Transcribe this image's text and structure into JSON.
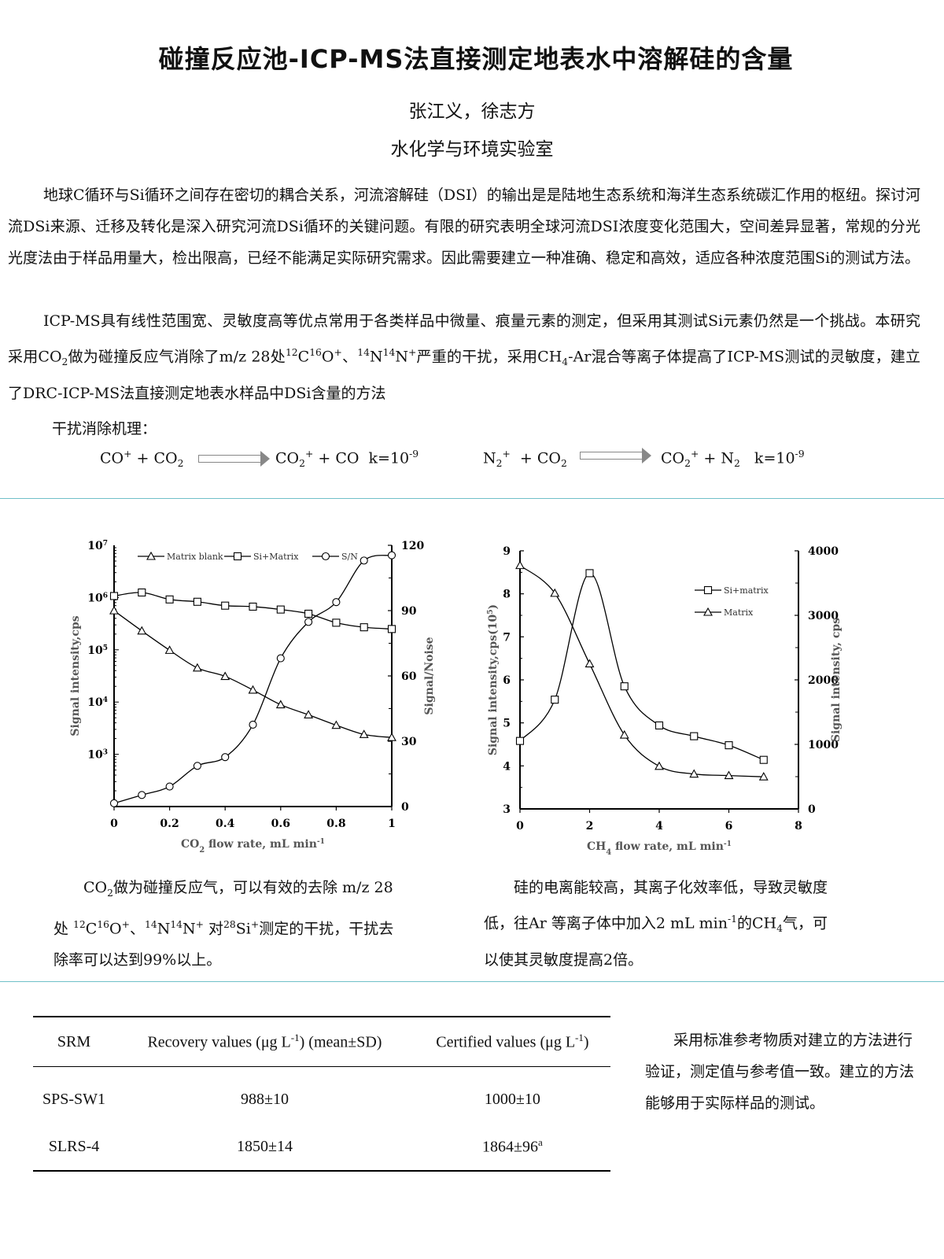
{
  "title": "碰撞反应池-ICP-MS法直接测定地表水中溶解硅的含量",
  "authors": "张江义，徐志方",
  "lab": "水化学与环境实验室",
  "intro": {
    "p1": [
      [
        "地球C循环与Si循环之间存在密切的耦合关系，河流溶解硅（DSI）的输出是是陆地生态系统和海洋生态系统碳汇作用的枢纽。探讨河流DSi来源、迁移及转化是深入研究河流DSi循环的关键问题。有限的研究表明全球河流DSI浓度变化范围大，空间差异显著，常规的分光光度法由于样品用量大，检出限高，已经不能满足实际研究需求。因此需要建立一种准确、稳定和高效，适应各种浓度范围Si的测试方法。",
        ""
      ]
    ],
    "p2": [
      [
        "ICP-MS具有线性范围宽、灵敏度高等优点常用于各类样品中微量、痕量元素的测定，但采用其测试Si元素仍然是一个挑战。本研究采用CO",
        ""
      ],
      [
        "2",
        "sub"
      ],
      [
        "做为碰撞反应气消除了m/z 28处",
        ""
      ],
      [
        "12",
        "sup"
      ],
      [
        "C",
        ""
      ],
      [
        "16",
        "sup"
      ],
      [
        "O",
        ""
      ],
      [
        "+",
        "sup"
      ],
      [
        "、",
        ""
      ],
      [
        "14",
        "sup"
      ],
      [
        "N",
        ""
      ],
      [
        "14",
        "sup"
      ],
      [
        "N",
        ""
      ],
      [
        "+",
        "sup"
      ],
      [
        "严重的干扰，采用CH",
        ""
      ],
      [
        "4",
        "sub"
      ],
      [
        "-Ar混合等离子体提高了ICP-MS测试的灵敏度，建立了DRC-ICP-MS法直接测定地表水样品中DSi含量的方法",
        ""
      ]
    ]
  },
  "mechanism": {
    "label": "干扰消除机理：",
    "eq1_left": [
      [
        "CO",
        ""
      ],
      [
        "+",
        "sup"
      ],
      [
        " + CO",
        ""
      ],
      [
        "2",
        "sub"
      ]
    ],
    "eq1_right": [
      [
        "CO",
        ""
      ],
      [
        "2",
        "sub"
      ],
      [
        "+",
        "sup"
      ],
      [
        " + CO  k=10",
        ""
      ],
      [
        "-9",
        "sup"
      ]
    ],
    "eq2_left": [
      [
        "N",
        ""
      ],
      [
        "2",
        "sub"
      ],
      [
        "+",
        "sup"
      ],
      [
        "  + CO",
        ""
      ],
      [
        "2",
        "sub"
      ]
    ],
    "eq2_right": [
      [
        "CO",
        ""
      ],
      [
        "2",
        "sub"
      ],
      [
        "+",
        "sup"
      ],
      [
        " + N",
        ""
      ],
      [
        "2",
        "sub"
      ],
      [
        "   k=10",
        ""
      ],
      [
        "-9",
        "sup"
      ]
    ]
  },
  "chart_data": [
    {
      "type": "line",
      "x": [
        0,
        0.1,
        0.2,
        0.3,
        0.4,
        0.5,
        0.6,
        0.7,
        0.8,
        0.9,
        1.0
      ],
      "xlabel": [
        [
          "CO",
          ""
        ],
        [
          "2",
          "sub"
        ],
        [
          " flow rate, mL min",
          ""
        ],
        [
          "-1",
          "sup"
        ]
      ],
      "xticks": [
        "0",
        "0.2",
        "0.4",
        "0.6",
        "0.8",
        "1"
      ],
      "xlim": [
        0,
        1
      ],
      "ylabel": "Signal intensity,cps",
      "yscale": "log",
      "ylim": [
        100,
        10000000
      ],
      "yticks": [
        [
          "10",
          "3"
        ],
        [
          "10",
          "4"
        ],
        [
          "10",
          "5"
        ],
        [
          "10",
          "6"
        ],
        [
          "10",
          "7"
        ]
      ],
      "y2label": "Signal/Noise",
      "y2lim": [
        0,
        120
      ],
      "y2ticks": [
        "0",
        "30",
        "60",
        "90",
        "120"
      ],
      "legend_position": "top",
      "series": [
        {
          "name": "Matrix blank",
          "marker": "triangle",
          "axis": "left",
          "values": [
            560000,
            230000,
            98000,
            45000,
            31000,
            17000,
            8900,
            5700,
            3600,
            2400,
            2100
          ]
        },
        {
          "name": "Si+Matrix",
          "marker": "square",
          "axis": "left",
          "values": [
            1070000,
            1250000,
            920000,
            830000,
            700000,
            670000,
            590000,
            490000,
            330000,
            270000,
            250000
          ]
        },
        {
          "name": "S/N",
          "marker": "circle",
          "axis": "right",
          "values": [
            1.5,
            5.3,
            9.2,
            18.7,
            22.7,
            37.6,
            68.1,
            84.8,
            93.9,
            113,
            115.4
          ]
        }
      ]
    },
    {
      "type": "line",
      "x": [
        0,
        1,
        2,
        3,
        4,
        5,
        6,
        7
      ],
      "xlabel": [
        [
          "CH",
          ""
        ],
        [
          "4",
          "sub"
        ],
        [
          " flow rate, mL min",
          ""
        ],
        [
          "-1",
          "sup"
        ]
      ],
      "xticks": [
        "0",
        "2",
        "4",
        "6",
        "8"
      ],
      "xlim": [
        0,
        8
      ],
      "ylabel": [
        [
          "Signal intensity,cps(10",
          ""
        ],
        [
          "5",
          "sup"
        ],
        [
          ")",
          ""
        ]
      ],
      "ylim": [
        3,
        9
      ],
      "yticks": [
        "3",
        "4",
        "5",
        "6",
        "7",
        "8",
        "9"
      ],
      "y2label": "Signal intensity, cps",
      "y2lim": [
        0,
        4000
      ],
      "y2ticks": [
        "0",
        "1000",
        "2000",
        "3000",
        "4000"
      ],
      "legend_position": "top-right",
      "series": [
        {
          "name": "Si+matrix",
          "marker": "square",
          "axis": "left",
          "values": [
            4.58,
            5.54,
            8.48,
            5.85,
            4.94,
            4.69,
            4.48,
            4.14
          ]
        },
        {
          "name": "Matrix",
          "marker": "triangle",
          "axis": "right",
          "values": [
            3773,
            3343,
            2249,
            1146,
            661,
            541,
            517,
            498
          ]
        }
      ]
    }
  ],
  "captions": {
    "left": [
      [
        "CO",
        ""
      ],
      [
        "2",
        "sub"
      ],
      [
        "做为碰撞反应气，可以有效的去除 m/z 28处 ",
        ""
      ],
      [
        "12",
        "sup"
      ],
      [
        "C",
        ""
      ],
      [
        "16",
        "sup"
      ],
      [
        "O",
        ""
      ],
      [
        "+",
        "sup"
      ],
      [
        "、",
        ""
      ],
      [
        "14",
        "sup"
      ],
      [
        "N",
        ""
      ],
      [
        "14",
        "sup"
      ],
      [
        "N",
        ""
      ],
      [
        "+",
        "sup"
      ],
      [
        " 对",
        ""
      ],
      [
        "28",
        "sup"
      ],
      [
        "Si",
        ""
      ],
      [
        "+",
        "sup"
      ],
      [
        "测定的干扰，干扰去除率可以达到99%以上。",
        ""
      ]
    ],
    "right": [
      [
        "硅的电离能较高，其离子化效率低，导致灵敏度低，往Ar 等离子体中加入2 mL min",
        ""
      ],
      [
        "-1",
        "sup"
      ],
      [
        "的CH",
        ""
      ],
      [
        "4",
        "sub"
      ],
      [
        "气，可以使其灵敏度提高2倍。",
        ""
      ]
    ]
  },
  "table": {
    "headers": [
      "SRM",
      "Recovery values (μg L-1) (mean±SD)",
      "Certified values (μg L-1)"
    ],
    "header_rich": [
      [
        [
          "SRM",
          ""
        ]
      ],
      [
        [
          "Recovery values (μg L",
          ""
        ],
        [
          "-1",
          "sup"
        ],
        [
          ") (mean±SD)",
          ""
        ]
      ],
      [
        [
          "Certified values (μg L",
          ""
        ],
        [
          "-1",
          "sup"
        ],
        [
          ")",
          ""
        ]
      ]
    ],
    "rows": [
      [
        [
          [
            "SPS-SW1",
            ""
          ]
        ],
        [
          [
            "988±10",
            ""
          ]
        ],
        [
          [
            "1000±10",
            ""
          ]
        ]
      ],
      [
        [
          [
            "SLRS-4",
            ""
          ]
        ],
        [
          [
            "1850±14",
            ""
          ]
        ],
        [
          [
            "1864±96",
            ""
          ],
          [
            "a",
            "sup"
          ]
        ]
      ]
    ]
  },
  "conclusion": "采用标准参考物质对建立的方法进行验证，测定值与参考值一致。建立的方法能够用于实际样品的测试。",
  "colors": {
    "divider": "#6fc0c8",
    "text": "#111111",
    "axis_label": "#555555"
  }
}
